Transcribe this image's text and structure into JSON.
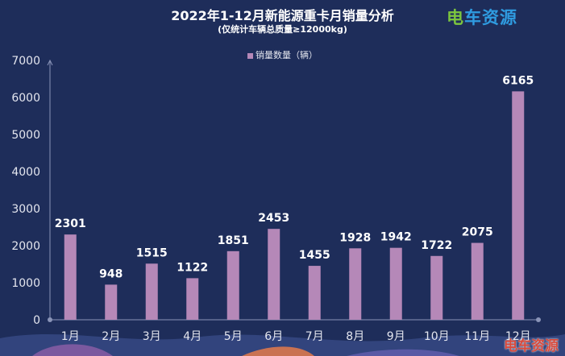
{
  "header": {
    "title": "2022年1-12月新能源重卡月销量分析",
    "subtitle": "(仅统计车辆总质量≥12000kg)",
    "logo_text": "电车资源",
    "watermark_text": "电车资源"
  },
  "colors": {
    "background": "#1e2d5a",
    "bar": "#b588b8",
    "axis": "#8a94b8",
    "text": "#e4e6ef",
    "value_label": "#ffffff",
    "logo_green": "#7cc63e",
    "logo_blue": "#2f9be0",
    "watermark": "#d94a3c"
  },
  "chart_data": {
    "type": "bar",
    "title": "2022年1-12月新能源重卡月销量分析",
    "subtitle": "(仅统计车辆总质量≥12000kg)",
    "categories": [
      "1月",
      "2月",
      "3月",
      "4月",
      "5月",
      "6月",
      "7月",
      "8月",
      "9月",
      "10月",
      "11月",
      "12月"
    ],
    "series": [
      {
        "name": "销量数量（辆）",
        "values": [
          2301,
          948,
          1515,
          1122,
          1851,
          2453,
          1455,
          1928,
          1942,
          1722,
          2075,
          6165
        ]
      }
    ],
    "ylim": [
      0,
      7000
    ],
    "yticks": [
      0,
      1000,
      2000,
      3000,
      4000,
      5000,
      6000,
      7000
    ],
    "xlabel": "",
    "ylabel": "",
    "grid": false,
    "legend_position": "top-center",
    "data_labels": true
  }
}
